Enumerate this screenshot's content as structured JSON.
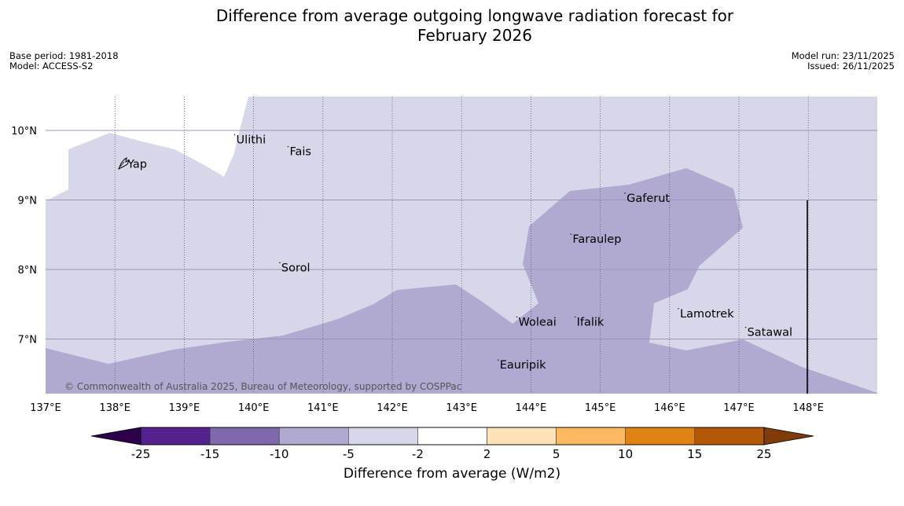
{
  "header": {
    "title_line1": "Difference from average outgoing longwave radiation forecast for",
    "title_line2": "February 2026",
    "base_period": "Base period: 1981-2018",
    "model": "Model: ACCESS-S2",
    "model_run": "Model run: 23/11/2025",
    "issued": "Issued: 26/11/2025"
  },
  "map": {
    "lon_labels": [
      "137°E",
      "138°E",
      "139°E",
      "140°E",
      "141°E",
      "142°E",
      "143°E",
      "144°E",
      "145°E",
      "146°E",
      "147°E",
      "148°E"
    ],
    "lat_labels": [
      "10°N",
      "9°N",
      "8°N",
      "7°N"
    ],
    "places": [
      {
        "name": "Ulithi",
        "lon": 139.75,
        "lat": 9.87
      },
      {
        "name": "Fais",
        "lon": 140.52,
        "lat": 9.7
      },
      {
        "name": "Yap",
        "lon": 138.18,
        "lat": 9.52
      },
      {
        "name": "Gaferut",
        "lon": 145.38,
        "lat": 9.03
      },
      {
        "name": "Faraulep",
        "lon": 144.6,
        "lat": 8.44
      },
      {
        "name": "Sorol",
        "lon": 140.4,
        "lat": 8.03
      },
      {
        "name": "Lamotrek",
        "lon": 146.15,
        "lat": 7.37
      },
      {
        "name": "Woleai",
        "lon": 143.82,
        "lat": 7.25
      },
      {
        "name": "Ifalik",
        "lon": 144.66,
        "lat": 7.25
      },
      {
        "name": "Satawal",
        "lon": 147.12,
        "lat": 7.1
      },
      {
        "name": "Eauripik",
        "lon": 143.55,
        "lat": 6.63
      }
    ],
    "copyright": "© Commonwealth of Australia 2025, Bureau of Meteorology, supported by COSPPac",
    "colors": {
      "light_band": "#d7d7ea",
      "mid_band": "#b0aad1"
    }
  },
  "colorbar": {
    "ticks": [
      "-25",
      "-15",
      "-10",
      "-5",
      "-2",
      "2",
      "5",
      "10",
      "15",
      "25"
    ],
    "colors": [
      "#54218f",
      "#7e6aab",
      "#b0aad1",
      "#d7d7ea",
      "#ffffff",
      "#fee1b6",
      "#fdb862",
      "#e08214",
      "#b35807"
    ],
    "under_color": "#2d004b",
    "over_color": "#7f3b08",
    "label": "Difference from average (W/m2)"
  }
}
